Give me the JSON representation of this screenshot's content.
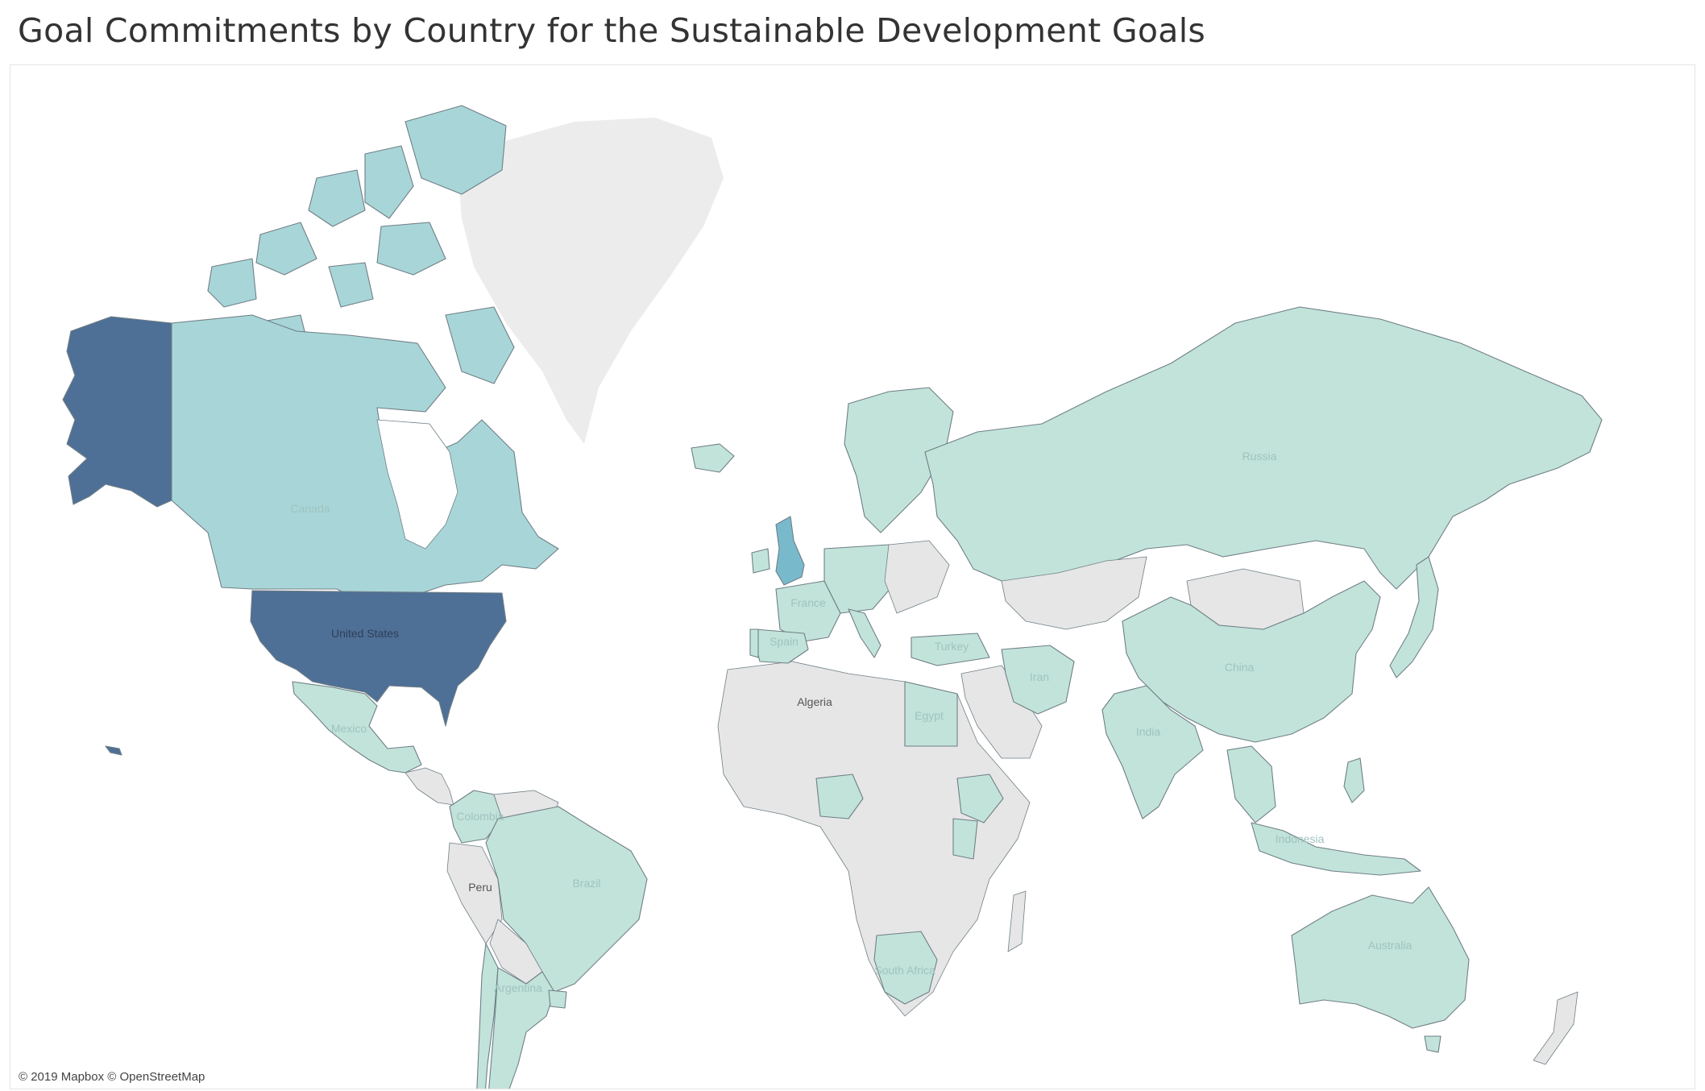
{
  "title": "Goal Commitments by Country for the Sustainable Development Goals",
  "attribution": "© 2019 Mapbox © OpenStreetMap",
  "colors": {
    "no_commitment": "#e6e6e6",
    "low": "#c2e3da",
    "mid": "#a8d6d8",
    "high_uk": "#79b9cc",
    "highest": "#4e6f96",
    "border": "#6f7f86",
    "greenland": "#ececec",
    "label_on_dark": "#2f3f58",
    "label_on_light": "#9fc3bf"
  },
  "map_data": {
    "type": "choropleth",
    "color_key": "relative number of goal commitments (darker = more)",
    "country_labels": [
      {
        "name": "Canada",
        "level": "mid"
      },
      {
        "name": "United States",
        "level": "highest"
      },
      {
        "name": "Mexico",
        "level": "low"
      },
      {
        "name": "Colombia",
        "level": "low"
      },
      {
        "name": "Peru",
        "level": "none"
      },
      {
        "name": "Brazil",
        "level": "low"
      },
      {
        "name": "Argentina",
        "level": "low"
      },
      {
        "name": "Algeria",
        "level": "none"
      },
      {
        "name": "Egypt",
        "level": "low"
      },
      {
        "name": "South Africa",
        "level": "low"
      },
      {
        "name": "France",
        "level": "low"
      },
      {
        "name": "Spain",
        "level": "low"
      },
      {
        "name": "Turkey",
        "level": "low"
      },
      {
        "name": "Iran",
        "level": "low"
      },
      {
        "name": "Russia",
        "level": "low"
      },
      {
        "name": "China",
        "level": "low"
      },
      {
        "name": "India",
        "level": "low"
      },
      {
        "name": "Indonesia",
        "level": "low"
      },
      {
        "name": "Australia",
        "level": "low"
      }
    ],
    "region_levels": {
      "alaska": "highest",
      "contiguous_us": "highest",
      "canada": "mid",
      "arctic_islands": "mid",
      "united_kingdom": "high_uk",
      "greenland": "none",
      "africa": "none",
      "middle_east": "none",
      "central_asia": "none"
    }
  }
}
